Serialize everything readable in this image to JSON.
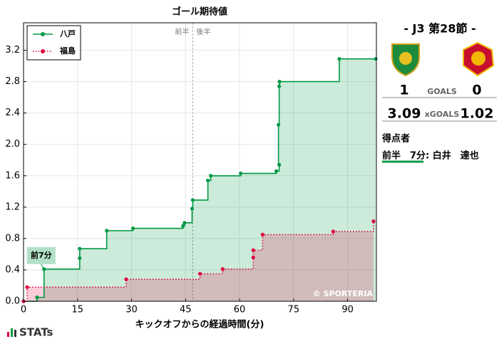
{
  "chart_data": {
    "type": "step",
    "title": "ゴール期待値",
    "x_label": "キックオフからの経過時間(分)",
    "xlim": [
      0,
      98
    ],
    "ylim": [
      0,
      3.55
    ],
    "xticks": [
      0,
      15,
      30,
      45,
      60,
      75,
      90
    ],
    "yticks": [
      {
        "value": 0,
        "label": "0.0"
      },
      0.4,
      0.8,
      1.2,
      1.6,
      {
        "value": 2,
        "label": "2.0"
      },
      2.4,
      2.8,
      3.2
    ],
    "grid": true,
    "legend": "upper left",
    "halftime": {
      "x": 47,
      "left_label": "前半",
      "right_label": "後半"
    },
    "series": [
      {
        "name": "八戸",
        "color": "#009944",
        "line": "solid",
        "x": [
          0,
          3.75,
          5.7,
          15.6,
          15.6,
          23.1,
          30.4,
          44.3,
          44.7,
          46.8,
          47.0,
          51.2,
          52.0,
          60.3,
          70.2,
          71.0,
          70.8,
          71.0,
          71.1,
          87.7,
          97.8
        ],
        "values": [
          0,
          0.05,
          0.41,
          0.55,
          0.67,
          0.9,
          0.93,
          0.96,
          1.0,
          1.18,
          1.29,
          1.54,
          1.6,
          1.63,
          1.66,
          1.74,
          2.25,
          2.74,
          2.8,
          3.09,
          3.09
        ]
      },
      {
        "name": "福島",
        "color": "#e0003c",
        "line": "dotted",
        "x": [
          0,
          1.0,
          28.5,
          49.0,
          55.3,
          63.8,
          63.8,
          66.4,
          86.0,
          97.2
        ],
        "values": [
          0,
          0.18,
          0.28,
          0.35,
          0.41,
          0.56,
          0.65,
          0.85,
          0.89,
          1.02
        ]
      }
    ],
    "annotations": [
      {
        "label": "前7分",
        "series": 0,
        "point": 2
      }
    ],
    "watermark": "© SPORTERIA"
  },
  "match": {
    "title": "- J3 第28節 -",
    "goals_label": "GOALS",
    "home_goals": 1,
    "away_goals": 0,
    "xgoals_label": "xGOALS",
    "home_xg": 3.09,
    "away_xg": 1.02,
    "scorers_title": "得点者",
    "scorers": [
      "前半　7分: 白井　達也"
    ]
  },
  "brand": "STATs"
}
